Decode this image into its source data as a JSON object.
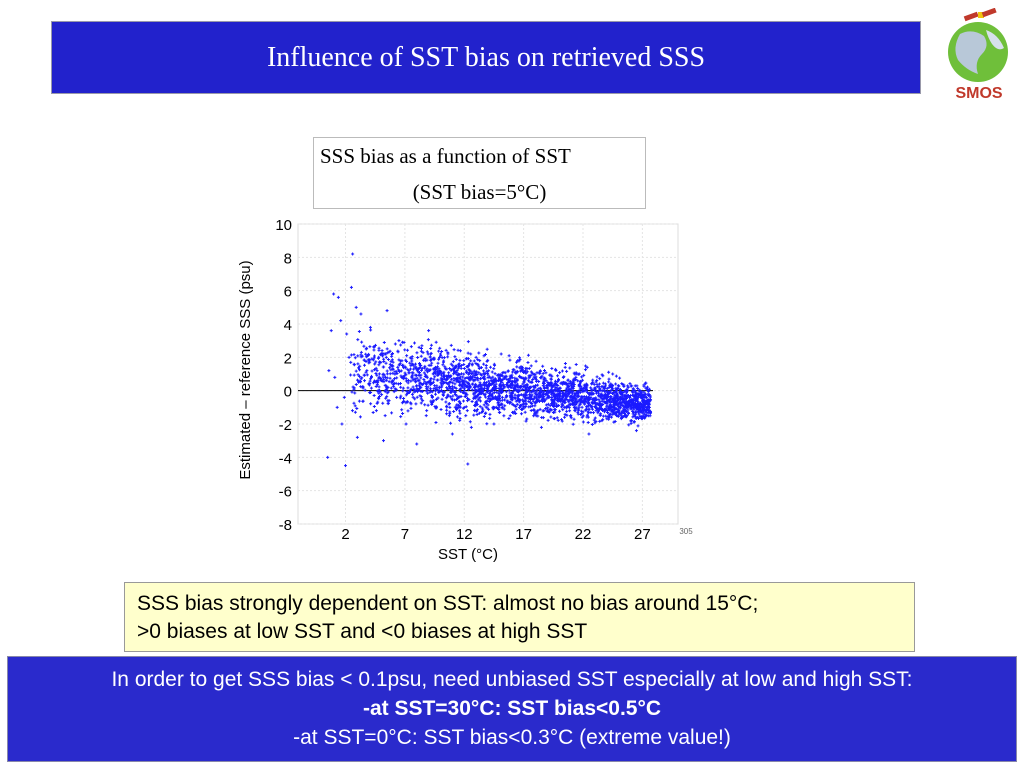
{
  "slide": {
    "title": "Influence of SST bias on retrieved SSS",
    "logo_text": "SMOS"
  },
  "caption": {
    "line1": "SSS bias as a function of SST",
    "line2": "(SST bias=5°C)"
  },
  "finding": {
    "line1": "SSS bias strongly dependent on SST: almost no bias around 15°C;",
    "line2": ">0 biases at low SST and <0 biases at high SST"
  },
  "conclusion": {
    "line1": "In order to get SSS bias < 0.1psu, need unbiased SST especially at low and high SST:",
    "line2": "-at SST=30°C: SST bias<0.5°C",
    "line3": "-at SST=0°C: SST bias<0.3°C (extreme value!)"
  },
  "colors": {
    "title_bg": "#2222cc",
    "conclusion_bg": "#2a2acc",
    "finding_bg": "#ffffcc",
    "point": "#1a1aff"
  },
  "chart_data": {
    "type": "scatter",
    "title": "",
    "xlabel": "SST (°C)",
    "ylabel": "Estimated – reference SSS (psu)",
    "xlim": [
      -2,
      30
    ],
    "ylim": [
      -8,
      10
    ],
    "x_ticks": [
      2,
      7,
      12,
      17,
      22,
      27
    ],
    "y_ticks": [
      10,
      8,
      6,
      4,
      2,
      0,
      -2,
      -4,
      -6,
      -8
    ],
    "corner_tick_label": "305",
    "grid": true,
    "reference_line_y": 0,
    "series": [
      {
        "points_approx": "dense cloud from SST ~1 to ~28 °C; mean bias ~+1 psu near 1–3 °C, ~0 near 15 °C, ~-1 psu near 27 °C; spread shrinking with SST",
        "x": [
          0.5,
          1.0,
          1.3,
          1.6,
          2.0,
          2.3,
          0.8,
          1.1,
          1.4,
          1.9,
          2.5,
          2.9,
          3.3,
          3.8,
          4.1,
          4.6,
          5.0,
          5.5,
          6.0,
          6.5,
          7.1,
          7.6,
          8.2,
          8.8,
          9.4,
          10.0,
          10.7,
          11.3,
          12.0,
          12.6,
          13.3,
          14.0,
          14.7,
          15.4,
          16.1,
          16.8,
          17.5,
          18.2,
          18.9,
          19.6,
          20.3,
          21.0,
          21.6,
          22.3,
          23.0,
          23.6,
          24.2,
          24.8,
          25.4,
          26.0,
          26.6,
          27.2,
          27.6,
          2.1,
          3.0,
          4.4,
          5.2,
          6.2,
          8.0,
          9.0,
          11.0,
          13.0,
          14.5,
          16.5,
          18.5,
          20.5,
          22.5,
          24.5,
          26.5,
          2.6,
          12.3,
          1.7,
          0.6
        ],
        "y": [
          -4.0,
          5.8,
          -1.0,
          4.2,
          -4.5,
          2.0,
          3.6,
          0.8,
          5.6,
          -0.4,
          6.2,
          5.0,
          4.6,
          1.2,
          3.8,
          -1.2,
          2.2,
          4.8,
          0.6,
          3.0,
          -2.0,
          1.6,
          2.6,
          -1.5,
          1.0,
          2.2,
          -0.8,
          1.4,
          0.4,
          -2.2,
          1.8,
          0.2,
          -1.0,
          0.8,
          -0.4,
          1.2,
          0.2,
          -1.2,
          0.6,
          -0.2,
          -0.9,
          0.4,
          -1.4,
          0.1,
          -0.6,
          -1.8,
          0.2,
          -0.8,
          -1.2,
          -0.3,
          -1.6,
          -0.6,
          -1.0,
          3.4,
          -2.8,
          2.6,
          -3.0,
          2.8,
          -3.2,
          3.6,
          -2.6,
          2.0,
          -2.0,
          1.8,
          -2.2,
          1.4,
          -2.6,
          1.0,
          -2.4,
          8.2,
          -4.4,
          -2.0,
          1.2
        ]
      }
    ]
  }
}
